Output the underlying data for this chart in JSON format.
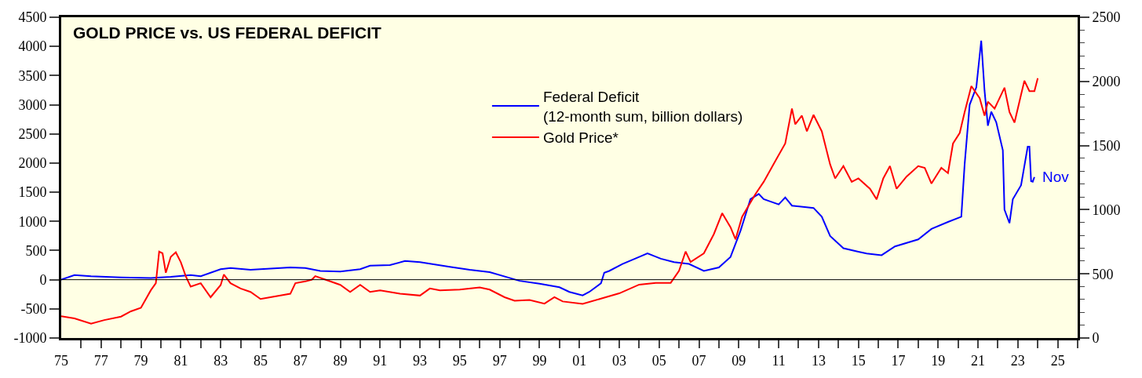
{
  "chart_data": {
    "type": "line",
    "title": "GOLD PRICE vs. US FEDERAL DEFICIT",
    "series": [
      {
        "name": "Federal Deficit\n(12-month sum, billion dollars)",
        "color": "#0000ff",
        "axis": "y",
        "x": [
          "1975-01",
          "1975-09",
          "1976-07",
          "1978-01",
          "1979-07",
          "1980-07",
          "1981-07",
          "1982-01",
          "1983-01",
          "1983-07",
          "1984-07",
          "1985-07",
          "1986-07",
          "1987-04",
          "1988-01",
          "1989-01",
          "1990-01",
          "1990-07",
          "1991-07",
          "1992-04",
          "1993-01",
          "1994-07",
          "1995-07",
          "1996-07",
          "1997-07",
          "1998-01",
          "1999-01",
          "2000-01",
          "2000-07",
          "2001-03",
          "2001-07",
          "2002-02",
          "2002-04",
          "2002-07",
          "2003-03",
          "2004-01",
          "2004-06",
          "2005-02",
          "2005-10",
          "2006-07",
          "2007-04",
          "2008-01",
          "2008-08",
          "2009-02",
          "2009-08",
          "2010-01",
          "2010-04",
          "2011-01",
          "2011-05",
          "2011-09",
          "2012-10",
          "2013-03",
          "2013-08",
          "2014-04",
          "2015-01",
          "2015-06",
          "2016-03",
          "2016-11",
          "2018-01",
          "2018-09",
          "2019-07",
          "2020-03",
          "2020-05",
          "2020-08",
          "2020-12",
          "2021-03",
          "2021-05",
          "2021-07",
          "2021-09",
          "2021-12",
          "2022-04",
          "2022-05",
          "2022-08",
          "2022-10",
          "2023-03",
          "2023-07",
          "2023-08",
          "2023-09",
          "2023-10",
          "2023-11"
        ],
        "values": [
          0,
          80,
          60,
          40,
          30,
          50,
          80,
          60,
          180,
          200,
          170,
          190,
          210,
          200,
          150,
          140,
          180,
          240,
          250,
          320,
          300,
          220,
          170,
          130,
          30,
          -20,
          -70,
          -130,
          -210,
          -270,
          -210,
          -60,
          120,
          150,
          270,
          390,
          450,
          360,
          300,
          270,
          150,
          210,
          390,
          840,
          1380,
          1470,
          1380,
          1290,
          1410,
          1270,
          1230,
          1080,
          750,
          540,
          480,
          450,
          420,
          570,
          690,
          870,
          990,
          1080,
          1980,
          3000,
          3300,
          4100,
          3240,
          2640,
          2880,
          2700,
          2220,
          1200,
          970,
          1380,
          1620,
          2280,
          2280,
          1690,
          1680,
          1760
        ]
      },
      {
        "name": "Gold Price*",
        "color": "#ff0000",
        "axis": "y2",
        "x": [
          "1975-01",
          "1975-09",
          "1976-07",
          "1977-03",
          "1978-01",
          "1978-07",
          "1979-01",
          "1979-07",
          "1979-10",
          "1979-12",
          "1980-02",
          "1980-04",
          "1980-07",
          "1980-10",
          "1981-01",
          "1981-04",
          "1981-07",
          "1982-01",
          "1982-07",
          "1983-01",
          "1983-03",
          "1983-07",
          "1984-01",
          "1984-07",
          "1985-01",
          "1985-07",
          "1986-01",
          "1986-07",
          "1986-10",
          "1987-04",
          "1987-08",
          "1987-10",
          "1988-04",
          "1989-01",
          "1989-07",
          "1990-01",
          "1990-07",
          "1991-01",
          "1992-01",
          "1993-01",
          "1993-07",
          "1994-01",
          "1995-01",
          "1996-01",
          "1996-07",
          "1997-04",
          "1997-10",
          "1998-07",
          "1999-04",
          "1999-10",
          "2000-03",
          "2001-03",
          "2002-02",
          "2003-01",
          "2004-01",
          "2004-11",
          "2005-08",
          "2006-01",
          "2006-05",
          "2006-08",
          "2007-04",
          "2007-10",
          "2008-03",
          "2008-08",
          "2008-11",
          "2009-03",
          "2009-11",
          "2010-04",
          "2010-11",
          "2011-05",
          "2011-09",
          "2011-11",
          "2012-03",
          "2012-06",
          "2012-10",
          "2013-03",
          "2013-08",
          "2013-11",
          "2014-04",
          "2014-09",
          "2015-01",
          "2015-08",
          "2015-12",
          "2016-04",
          "2016-08",
          "2016-12",
          "2017-06",
          "2018-01",
          "2018-05",
          "2018-09",
          "2019-03",
          "2019-07",
          "2019-10",
          "2020-02",
          "2020-05",
          "2020-09",
          "2021-02",
          "2021-05",
          "2021-07",
          "2021-11",
          "2022-05",
          "2022-08",
          "2022-11",
          "2023-03",
          "2023-05",
          "2023-08",
          "2023-11",
          "2024-01"
        ],
        "values": [
          170,
          153,
          112,
          140,
          167,
          208,
          235,
          372,
          427,
          674,
          660,
          509,
          633,
          668,
          591,
          482,
          400,
          427,
          318,
          413,
          495,
          427,
          386,
          359,
          304,
          318,
          331,
          345,
          427,
          441,
          455,
          482,
          455,
          414,
          359,
          414,
          359,
          372,
          345,
          331,
          386,
          372,
          377,
          394,
          377,
          318,
          290,
          296,
          268,
          318,
          285,
          266,
          307,
          348,
          416,
          429,
          430,
          524,
          674,
          592,
          660,
          810,
          973,
          864,
          769,
          945,
          1122,
          1217,
          1380,
          1516,
          1788,
          1666,
          1733,
          1611,
          1739,
          1611,
          1353,
          1244,
          1340,
          1217,
          1244,
          1163,
          1081,
          1244,
          1340,
          1163,
          1258,
          1340,
          1326,
          1204,
          1326,
          1285,
          1516,
          1598,
          1761,
          1964,
          1869,
          1733,
          1842,
          1788,
          1951,
          1761,
          1679,
          1896,
          2005,
          1924,
          1924,
          2024
        ]
      }
    ],
    "annotations": [
      {
        "text": "Nov",
        "x": "2023-11",
        "y": 1760
      }
    ],
    "ref_lines": [
      {
        "axis": "y",
        "value": 0,
        "color": "#000000"
      }
    ],
    "xlim": [
      "1975-01-01",
      "2026-01-01"
    ],
    "xticks": [
      {
        "value": "1975",
        "label": "75"
      },
      {
        "value": "1976",
        "label": null
      },
      {
        "value": "1977",
        "label": "77"
      },
      {
        "value": "1978",
        "label": null
      },
      {
        "value": "1979",
        "label": "79"
      },
      {
        "value": "1980",
        "label": null
      },
      {
        "value": "1981",
        "label": "81"
      },
      {
        "value": "1982",
        "label": null
      },
      {
        "value": "1983",
        "label": "83"
      },
      {
        "value": "1984",
        "label": null
      },
      {
        "value": "1985",
        "label": "85"
      },
      {
        "value": "1986",
        "label": null
      },
      {
        "value": "1987",
        "label": "87"
      },
      {
        "value": "1988",
        "label": null
      },
      {
        "value": "1989",
        "label": "89"
      },
      {
        "value": "1990",
        "label": null
      },
      {
        "value": "1991",
        "label": "91"
      },
      {
        "value": "1992",
        "label": null
      },
      {
        "value": "1993",
        "label": "93"
      },
      {
        "value": "1994",
        "label": null
      },
      {
        "value": "1995",
        "label": "95"
      },
      {
        "value": "1996",
        "label": null
      },
      {
        "value": "1997",
        "label": "97"
      },
      {
        "value": "1998",
        "label": null
      },
      {
        "value": "1999",
        "label": "99"
      },
      {
        "value": "2000",
        "label": null
      },
      {
        "value": "2001",
        "label": "01"
      },
      {
        "value": "2002",
        "label": null
      },
      {
        "value": "2003",
        "label": "03"
      },
      {
        "value": "2004",
        "label": null
      },
      {
        "value": "2005",
        "label": "05"
      },
      {
        "value": "2006",
        "label": null
      },
      {
        "value": "2007",
        "label": "07"
      },
      {
        "value": "2008",
        "label": null
      },
      {
        "value": "2009",
        "label": "09"
      },
      {
        "value": "2010",
        "label": null
      },
      {
        "value": "2011",
        "label": "11"
      },
      {
        "value": "2012",
        "label": null
      },
      {
        "value": "2013",
        "label": "13"
      },
      {
        "value": "2014",
        "label": null
      },
      {
        "value": "2015",
        "label": "15"
      },
      {
        "value": "2016",
        "label": null
      },
      {
        "value": "2017",
        "label": "17"
      },
      {
        "value": "2018",
        "label": null
      },
      {
        "value": "2019",
        "label": "19"
      },
      {
        "value": "2020",
        "label": null
      },
      {
        "value": "2021",
        "label": "21"
      },
      {
        "value": "2022",
        "label": null
      },
      {
        "value": "2023",
        "label": "23"
      },
      {
        "value": "2024",
        "label": null
      },
      {
        "value": "2025",
        "label": "25"
      },
      {
        "value": "2026",
        "label": null
      }
    ],
    "ylim": [
      -1000,
      4500
    ],
    "yticks": [
      -1000,
      -500,
      0,
      500,
      1000,
      1500,
      2000,
      2500,
      3000,
      3500,
      4000,
      4500
    ],
    "y2lim": [
      0,
      2500
    ],
    "y2ticks": [
      0,
      {
        "value": 100,
        "label": null
      },
      {
        "value": 200,
        "label": null
      },
      {
        "value": 300,
        "label": null
      },
      {
        "value": 400,
        "label": null
      },
      500,
      {
        "value": 600,
        "label": null
      },
      {
        "value": 700,
        "label": null
      },
      {
        "value": 800,
        "label": null
      },
      {
        "value": 900,
        "label": null
      },
      1000,
      {
        "value": 1100,
        "label": null
      },
      {
        "value": 1200,
        "label": null
      },
      {
        "value": 1300,
        "label": null
      },
      {
        "value": 1400,
        "label": null
      },
      1500,
      {
        "value": 1600,
        "label": null
      },
      {
        "value": 1700,
        "label": null
      },
      {
        "value": 1800,
        "label": null
      },
      {
        "value": 1900,
        "label": null
      },
      2000,
      {
        "value": 2100,
        "label": null
      },
      {
        "value": 2200,
        "label": null
      },
      {
        "value": 2300,
        "label": null
      },
      {
        "value": 2400,
        "label": null
      },
      2500
    ],
    "grid": false,
    "legend": "top center",
    "marker": "none",
    "line_style": "solid"
  }
}
